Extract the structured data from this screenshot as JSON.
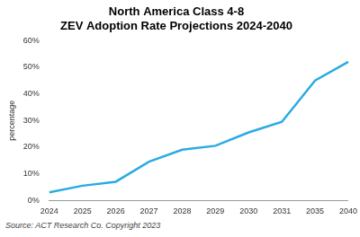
{
  "chart_data": {
    "type": "line",
    "title": [
      "North America Class 4-8",
      "ZEV Adoption Rate Projections 2024-2040"
    ],
    "y_label": "percentage",
    "source": "Source: ACT Research Co. Copyright 2023",
    "categories": [
      "2024",
      "2025",
      "2026",
      "2027",
      "2028",
      "2029",
      "2030",
      "2031",
      "2035",
      "2040"
    ],
    "values": [
      3,
      5.5,
      7,
      14.5,
      19,
      20.5,
      25.5,
      29.5,
      45,
      52
    ],
    "color": "#29abe2",
    "ylim": [
      0,
      60
    ],
    "yticks": [
      {
        "value": 0,
        "label": "0%"
      },
      {
        "value": 10,
        "label": "10%"
      },
      {
        "value": 20,
        "label": "20%"
      },
      {
        "value": 30,
        "label": "30%"
      },
      {
        "value": 40,
        "label": "40%"
      },
      {
        "value": 50,
        "label": "50%"
      },
      {
        "value": 60,
        "label": "60%"
      }
    ],
    "grid": false
  }
}
